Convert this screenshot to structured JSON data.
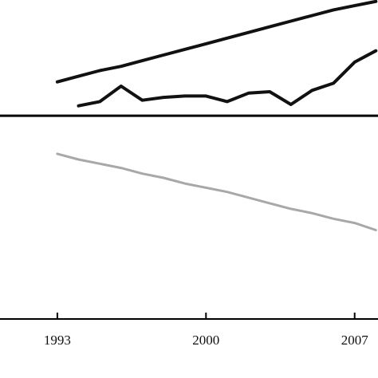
{
  "chart_data": {
    "type": "line",
    "title": "",
    "xlabel": "",
    "ylabel": "",
    "grid": false,
    "legend": "none",
    "xlim": [
      1990.3,
      2008.1
    ],
    "ylim": [
      -7.2,
      4.1
    ],
    "x_ticks": [
      1993,
      2000,
      2007
    ],
    "x_tick_labels": [
      "1993",
      "2000",
      "2007"
    ],
    "zero_line": 0,
    "series": [
      {
        "color": "#111111",
        "x": [
          1993,
          1994,
          1995,
          1996,
          1997,
          1998,
          1999,
          2000,
          2001,
          2002,
          2003,
          2004,
          2005,
          2006,
          2007,
          2008
        ],
        "values": [
          1.2,
          1.4,
          1.6,
          1.75,
          1.95,
          2.15,
          2.35,
          2.55,
          2.75,
          2.95,
          3.15,
          3.35,
          3.55,
          3.75,
          3.9,
          4.05
        ]
      },
      {
        "color": "#111111",
        "x": [
          1994,
          1995,
          1996,
          1997,
          1998,
          1999,
          2000,
          2001,
          2002,
          2003,
          2004,
          2005,
          2006,
          2007,
          2008
        ],
        "values": [
          0.35,
          0.5,
          1.05,
          0.55,
          0.65,
          0.7,
          0.7,
          0.5,
          0.8,
          0.85,
          0.4,
          0.9,
          1.15,
          1.9,
          2.3
        ]
      },
      {
        "color": "#a8a8a8",
        "x": [
          1993,
          1994,
          1995,
          1996,
          1997,
          1998,
          1999,
          2000,
          2001,
          2002,
          2003,
          2004,
          2005,
          2006,
          2007,
          2008
        ],
        "values": [
          -1.35,
          -1.55,
          -1.7,
          -1.85,
          -2.05,
          -2.2,
          -2.4,
          -2.55,
          -2.7,
          -2.9,
          -3.1,
          -3.3,
          -3.45,
          -3.65,
          -3.8,
          -4.05
        ]
      }
    ]
  }
}
